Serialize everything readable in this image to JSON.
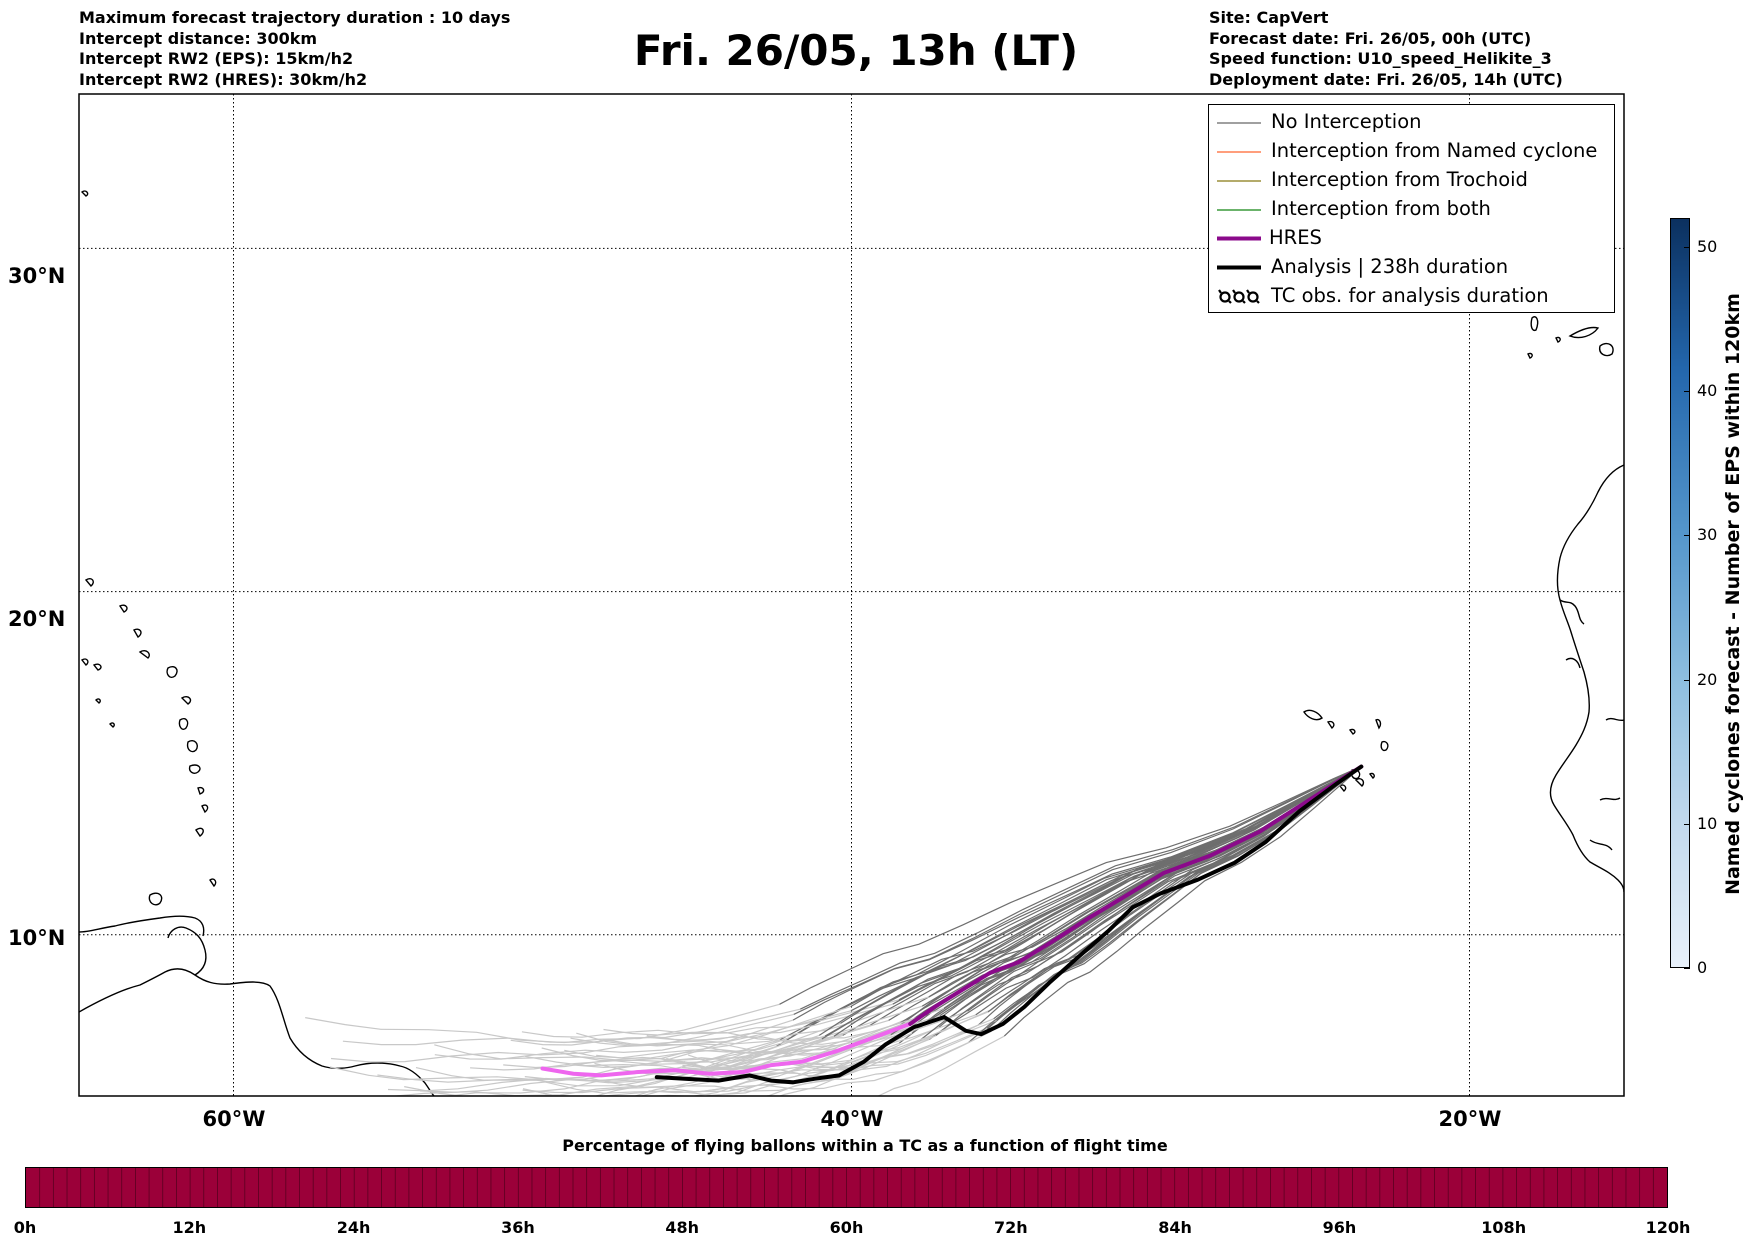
{
  "header_left": {
    "line1": "Maximum forecast trajectory duration : 10 days",
    "line2": "Intercept distance: 300km",
    "line3": "Intercept RW2 (EPS):  15km/h2",
    "line4": "Intercept RW2 (HRES): 30km/h2"
  },
  "title": "Fri. 26/05, 13h (LT)",
  "header_right": {
    "line1": "Site: CapVert",
    "line2": "Forecast date: Fri. 26/05, 00h (UTC)",
    "line3": "Speed function: U10_speed_Helikite_3",
    "line4": "Deployment date: Fri. 26/05, 14h (UTC)"
  },
  "map": {
    "lon_range": [
      -65,
      -15
    ],
    "lat_range": [
      5.3,
      34.5
    ],
    "lat_gridlines": [
      10,
      20,
      30
    ],
    "lon_gridlines": [
      -60,
      -40,
      -20
    ],
    "lat_labels": [
      "10°N",
      "20°N",
      "30°N"
    ],
    "lon_labels": [
      "60°W",
      "40°W",
      "20°W"
    ],
    "launch_site": {
      "lon": -23.5,
      "lat": 14.9
    },
    "hres_track": [
      [
        -23.5,
        14.9
      ],
      [
        -24.2,
        14.5
      ],
      [
        -25.4,
        13.8
      ],
      [
        -26.8,
        13.0
      ],
      [
        -28.4,
        12.3
      ],
      [
        -29.9,
        11.8
      ],
      [
        -31.0,
        11.2
      ],
      [
        -32.3,
        10.5
      ],
      [
        -33.5,
        9.8
      ],
      [
        -34.6,
        9.2
      ],
      [
        -35.5,
        8.9
      ],
      [
        -36.4,
        8.4
      ],
      [
        -37.3,
        7.9
      ],
      [
        -38.1,
        7.4
      ],
      [
        -39.3,
        7.0
      ],
      [
        -40.5,
        6.6
      ],
      [
        -41.6,
        6.3
      ],
      [
        -42.6,
        6.2
      ],
      [
        -43.5,
        6.0
      ],
      [
        -44.6,
        5.95
      ],
      [
        -45.7,
        6.05
      ],
      [
        -46.9,
        6.0
      ],
      [
        -48.1,
        5.9
      ],
      [
        -49.0,
        5.95
      ],
      [
        -50.0,
        6.1
      ]
    ],
    "analysis_track": [
      [
        -23.5,
        14.9
      ],
      [
        -24.3,
        14.4
      ],
      [
        -25.5,
        13.6
      ],
      [
        -26.6,
        12.7
      ],
      [
        -27.6,
        12.1
      ],
      [
        -28.8,
        11.6
      ],
      [
        -30.0,
        11.2
      ],
      [
        -30.9,
        10.8
      ],
      [
        -31.7,
        10.1
      ],
      [
        -32.6,
        9.4
      ],
      [
        -33.6,
        8.6
      ],
      [
        -34.4,
        7.9
      ],
      [
        -35.1,
        7.4
      ],
      [
        -35.8,
        7.1
      ],
      [
        -36.3,
        7.2
      ],
      [
        -37.0,
        7.6
      ],
      [
        -38.0,
        7.3
      ],
      [
        -38.9,
        6.8
      ],
      [
        -39.6,
        6.3
      ],
      [
        -40.4,
        5.9
      ],
      [
        -41.2,
        5.8
      ],
      [
        -41.9,
        5.7
      ],
      [
        -42.6,
        5.75
      ],
      [
        -43.3,
        5.9
      ],
      [
        -44.3,
        5.75
      ],
      [
        -45.4,
        5.8
      ],
      [
        -46.3,
        5.85
      ]
    ]
  },
  "legend": {
    "items": [
      {
        "label": "No Interception",
        "color": "#808080",
        "style": "thin"
      },
      {
        "label": "Interception from Named cyclone",
        "color": "#ff7f50",
        "style": "thin"
      },
      {
        "label": "Interception from Trochoid",
        "color": "#9c8f3a",
        "style": "thin"
      },
      {
        "label": "Interception from both",
        "color": "#3a9a3a",
        "style": "thin"
      },
      {
        "label": "HRES",
        "color": "#8b0a8b",
        "style": "thick"
      },
      {
        "label": "Analysis | 238h duration",
        "color": "#000000",
        "style": "thick"
      },
      {
        "label": "TC obs. for analysis duration",
        "color": "#000000",
        "style": "symbol"
      }
    ]
  },
  "colorbar_vertical": {
    "label": "Named cyclones forecast - Number of EPS within 120km",
    "ticks": [
      "0",
      "10",
      "20",
      "30",
      "40",
      "50"
    ],
    "range": [
      0,
      52
    ]
  },
  "colorbar_horizontal": {
    "label": "Percentage of flying ballons within a TC as a function of flight time",
    "color": "#9b0039",
    "ticks": [
      "0h",
      "12h",
      "24h",
      "36h",
      "48h",
      "60h",
      "72h",
      "84h",
      "96h",
      "108h",
      "120h"
    ]
  }
}
